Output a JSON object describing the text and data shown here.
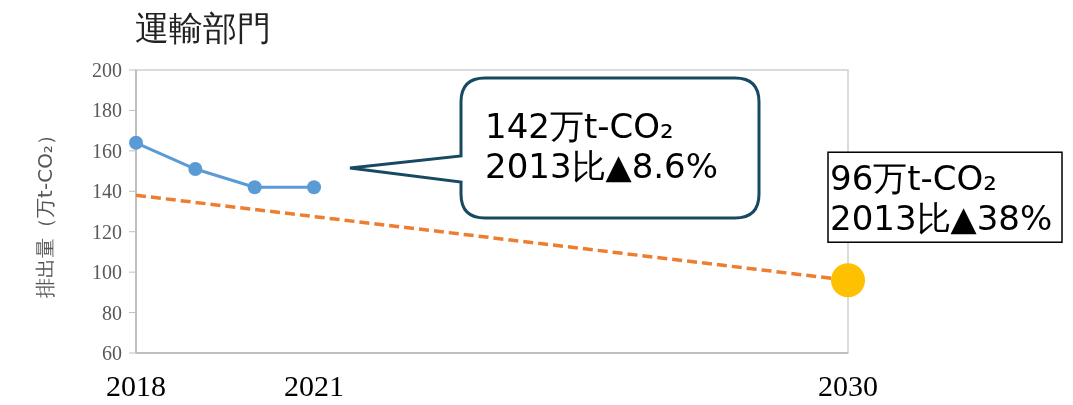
{
  "chart_data": {
    "type": "line",
    "title": "運輸部門",
    "ylabel": "排出量（万t-CO₂）",
    "xlim": [
      2018,
      2030
    ],
    "xticks": [
      2018,
      2021,
      2030
    ],
    "ylim": [
      60,
      200
    ],
    "yticks": [
      60,
      80,
      100,
      120,
      140,
      160,
      180,
      200
    ],
    "grid": false,
    "series": [
      {
        "color": "#5b9bd5",
        "x": [
          2018,
          2019,
          2020,
          2021
        ],
        "values": [
          164,
          151,
          142,
          142
        ],
        "marker": "circle",
        "line_style": "solid"
      },
      {
        "color": "#ed7d31",
        "x": [
          2018,
          2030
        ],
        "values": [
          138,
          96
        ],
        "marker": "none",
        "line_style": "dashed"
      },
      {
        "type": "scatter",
        "color": "#ffc000",
        "x": [
          2030
        ],
        "values": [
          96
        ],
        "marker": "circle"
      }
    ],
    "annotations": [
      "142万t-CO₂\n2013比▲8.6%",
      {
        "text": "96万t-CO₂\n2013比▲38%",
        "x": 2030,
        "y": 96
      }
    ]
  }
}
